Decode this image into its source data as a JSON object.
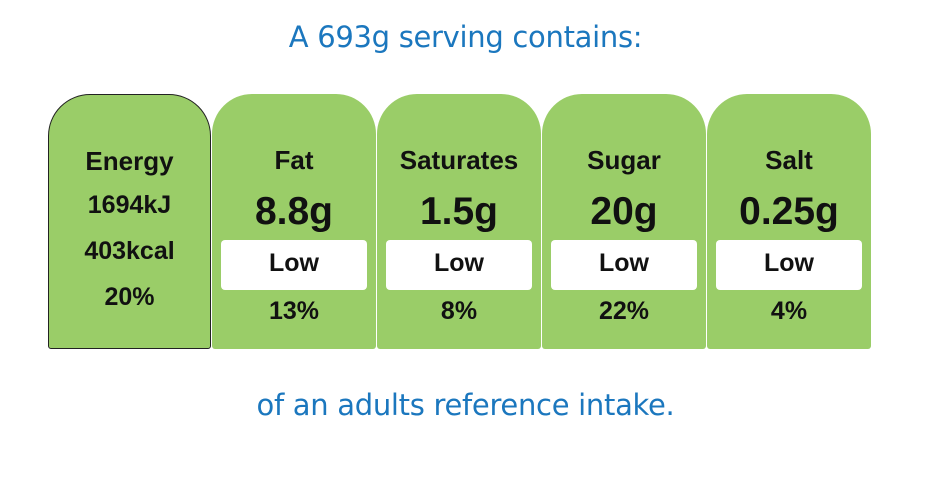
{
  "serving_heading": "A 693g serving contains:",
  "energy": {
    "title": "Energy",
    "kj": "1694kJ",
    "kcal": "403kcal",
    "percent": "20%"
  },
  "nutrients": [
    {
      "label": "Fat",
      "value": "8.8g",
      "level": "Low",
      "percent": "13%"
    },
    {
      "label": "Saturates",
      "value": "1.5g",
      "level": "Low",
      "percent": "8%"
    },
    {
      "label": "Sugar",
      "value": "20g",
      "level": "Low",
      "percent": "22%"
    },
    {
      "label": "Salt",
      "value": "0.25g",
      "level": "Low",
      "percent": "4%"
    }
  ],
  "reference_footer": "of an adults reference intake.",
  "colors": {
    "heading_blue": "#1b77be",
    "low_green": "#9acd68",
    "panel_white": "#ffffff"
  }
}
